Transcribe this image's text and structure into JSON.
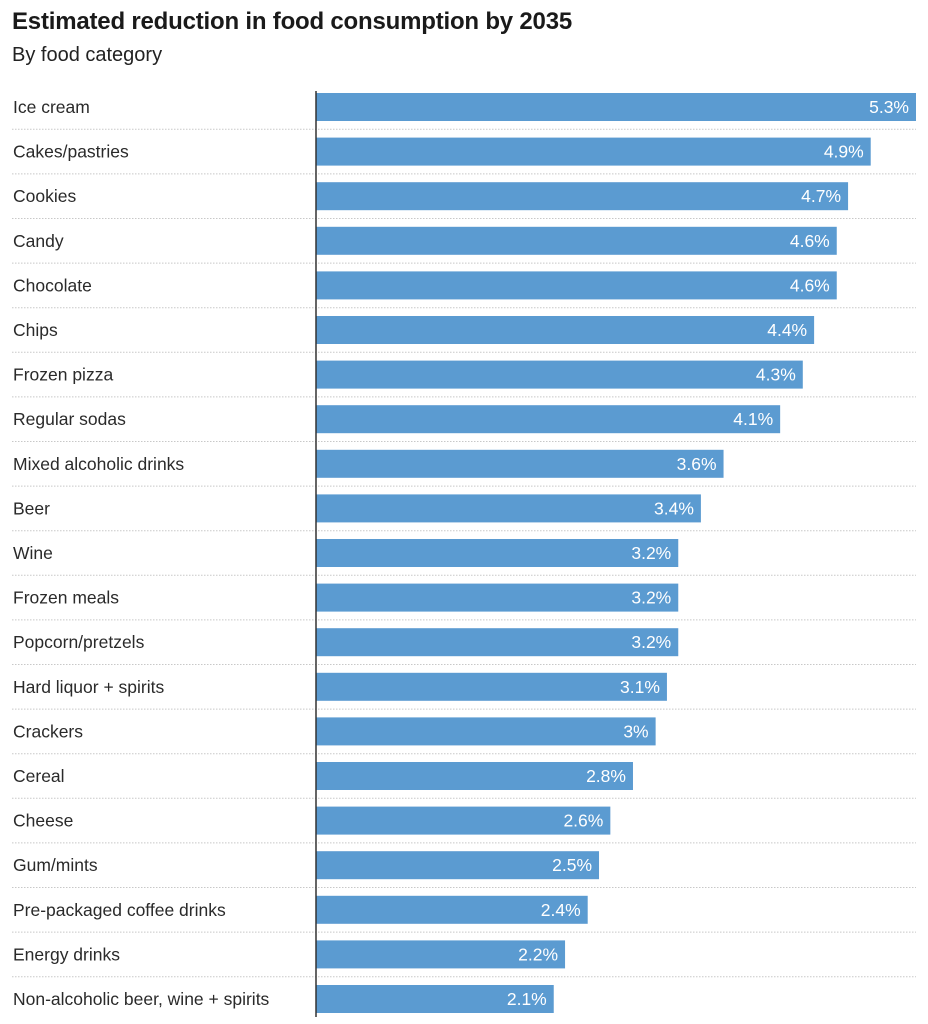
{
  "chart_data": {
    "type": "bar",
    "orientation": "horizontal",
    "title": "Estimated reduction in food consumption by 2035",
    "subtitle": "By food category",
    "xlabel": "",
    "ylabel": "",
    "xlim": [
      0,
      5.3
    ],
    "grid": false,
    "legend": "none",
    "bar_color": "#5b9bd1",
    "categories": [
      "Ice cream",
      "Cakes/pastries",
      "Cookies",
      "Candy",
      "Chocolate",
      "Chips",
      "Frozen pizza",
      "Regular sodas",
      "Mixed alcoholic drinks",
      "Beer",
      "Wine",
      "Frozen meals",
      "Popcorn/pretzels",
      "Hard liquor + spirits",
      "Crackers",
      "Cereal",
      "Cheese",
      "Gum/mints",
      "Pre-packaged coffee drinks",
      "Energy drinks",
      "Non-alcoholic beer, wine + spirits"
    ],
    "values": [
      5.3,
      4.9,
      4.7,
      4.6,
      4.6,
      4.4,
      4.3,
      4.1,
      3.6,
      3.4,
      3.2,
      3.2,
      3.2,
      3.1,
      3.0,
      2.8,
      2.6,
      2.5,
      2.4,
      2.2,
      2.1
    ],
    "value_labels": [
      "5.3%",
      "4.9%",
      "4.7%",
      "4.6%",
      "4.6%",
      "4.4%",
      "4.3%",
      "4.1%",
      "3.6%",
      "3.4%",
      "3.2%",
      "3.2%",
      "3.2%",
      "3.1%",
      "3%",
      "2.8%",
      "2.6%",
      "2.5%",
      "2.4%",
      "2.2%",
      "2.1%"
    ]
  }
}
